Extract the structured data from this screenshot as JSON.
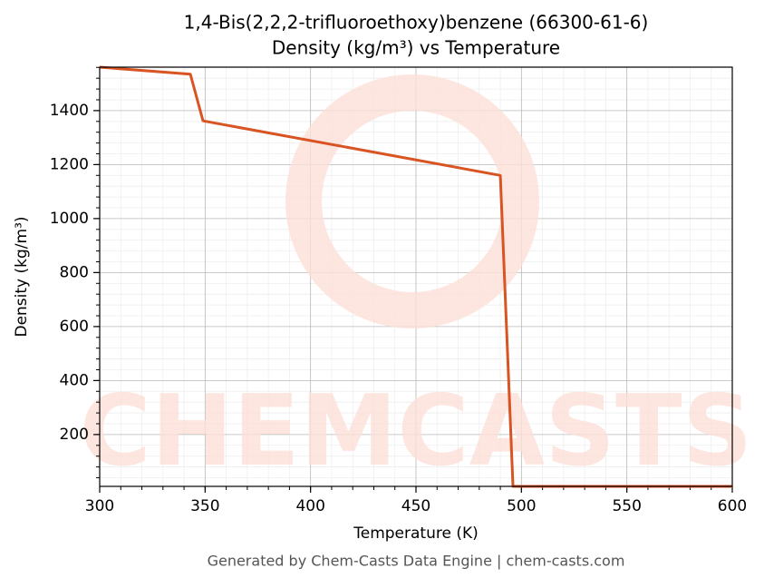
{
  "chart_data": {
    "type": "line",
    "title": "1,4-Bis(2,2,2-trifluoroethoxy)benzene (66300-61-6)",
    "subtitle": "Density (kg/m³) vs Temperature",
    "x_label": "Temperature (K)",
    "y_label": "Density (kg/m³)",
    "watermark": "CHEMCASTS",
    "footer": "Generated by Chem-Casts Data Engine | chem-casts.com",
    "x": [
      300,
      343,
      349,
      490,
      496,
      600
    ],
    "series": [
      {
        "name": "Density",
        "color": "#d95423",
        "values": [
          1561,
          1535,
          1362,
          1160,
          8,
          8
        ]
      }
    ],
    "xlim": [
      300,
      600
    ],
    "ylim": [
      8,
      1561
    ],
    "xticks": [
      300,
      350,
      400,
      450,
      500,
      550,
      600
    ],
    "yticks": [
      200,
      400,
      600,
      800,
      1000,
      1200,
      1400
    ],
    "grid": true,
    "minor_grid": true
  }
}
